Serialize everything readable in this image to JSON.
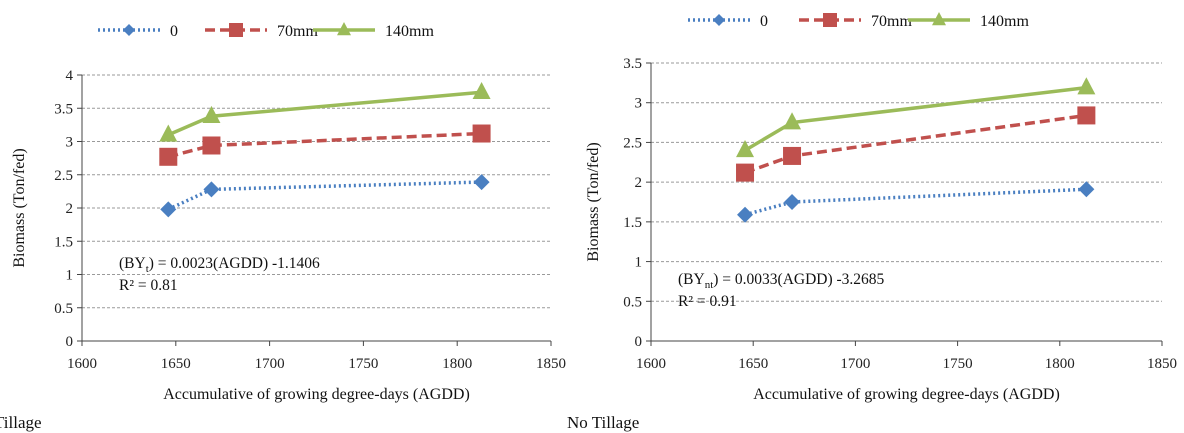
{
  "chart_data": [
    {
      "type": "line",
      "caption": "Tillage",
      "xlabel": "Accumulative of growing degree-days (AGDD)",
      "ylabel": "Biomass (Ton/fed)",
      "xlim": [
        1600,
        1850
      ],
      "ylim": [
        0,
        4
      ],
      "xticks": [
        1600,
        1650,
        1700,
        1750,
        1800,
        1850
      ],
      "yticks": [
        0,
        0.5,
        1,
        1.5,
        2,
        2.5,
        3,
        3.5,
        4
      ],
      "ytick_labels": [
        "0",
        "0.5",
        "1",
        "1.5",
        "2",
        "2.5",
        "3",
        "3.5",
        "4"
      ],
      "grid": "horizontal",
      "legend": "top",
      "series": [
        {
          "name": "0",
          "marker": "diamond",
          "dash": "dotted",
          "color": "#4a7fc1",
          "x": [
            1646,
            1669,
            1813
          ],
          "y": [
            1.98,
            2.28,
            2.39
          ]
        },
        {
          "name": "70mm",
          "marker": "square",
          "dash": "dashed",
          "color": "#c0504d",
          "x": [
            1646,
            1669,
            1813
          ],
          "y": [
            2.77,
            2.94,
            3.12
          ]
        },
        {
          "name": "140mm",
          "marker": "triangle",
          "dash": "solid",
          "color": "#9bbb59",
          "x": [
            1646,
            1669,
            1813
          ],
          "y": [
            3.1,
            3.38,
            3.74
          ]
        }
      ],
      "annotation": {
        "eq_prefix": "(BY",
        "eq_sub": "t",
        "eq_suffix": ") = 0.0023(AGDD) -1.1406",
        "r2": "R² = 0.81"
      }
    },
    {
      "type": "line",
      "caption": "No Tillage",
      "xlabel": "Accumulative of growing degree-days (AGDD)",
      "ylabel": "Biomass (Ton/fed)",
      "xlim": [
        1600,
        1850
      ],
      "ylim": [
        0,
        3.5
      ],
      "xticks": [
        1600,
        1650,
        1700,
        1750,
        1800,
        1850
      ],
      "yticks": [
        0,
        0.5,
        1,
        1.5,
        2,
        2.5,
        3,
        3.5
      ],
      "ytick_labels": [
        "0",
        "0.5",
        "1",
        "1.5",
        "2",
        "2.5",
        "3",
        "3.5"
      ],
      "grid": "horizontal",
      "legend": "top",
      "series": [
        {
          "name": "0",
          "marker": "diamond",
          "dash": "dotted",
          "color": "#4a7fc1",
          "x": [
            1646,
            1669,
            1813
          ],
          "y": [
            1.59,
            1.75,
            1.91
          ]
        },
        {
          "name": "70mm",
          "marker": "square",
          "dash": "dashed",
          "color": "#c0504d",
          "x": [
            1646,
            1669,
            1813
          ],
          "y": [
            2.12,
            2.33,
            2.84
          ]
        },
        {
          "name": "140mm",
          "marker": "triangle",
          "dash": "solid",
          "color": "#9bbb59",
          "x": [
            1646,
            1669,
            1813
          ],
          "y": [
            2.4,
            2.75,
            3.19
          ]
        }
      ],
      "annotation": {
        "eq_prefix": "(BY",
        "eq_sub": "nt",
        "eq_suffix": ") = 0.0033(AGDD) -3.2685",
        "r2": "R² = 0.91"
      }
    }
  ]
}
